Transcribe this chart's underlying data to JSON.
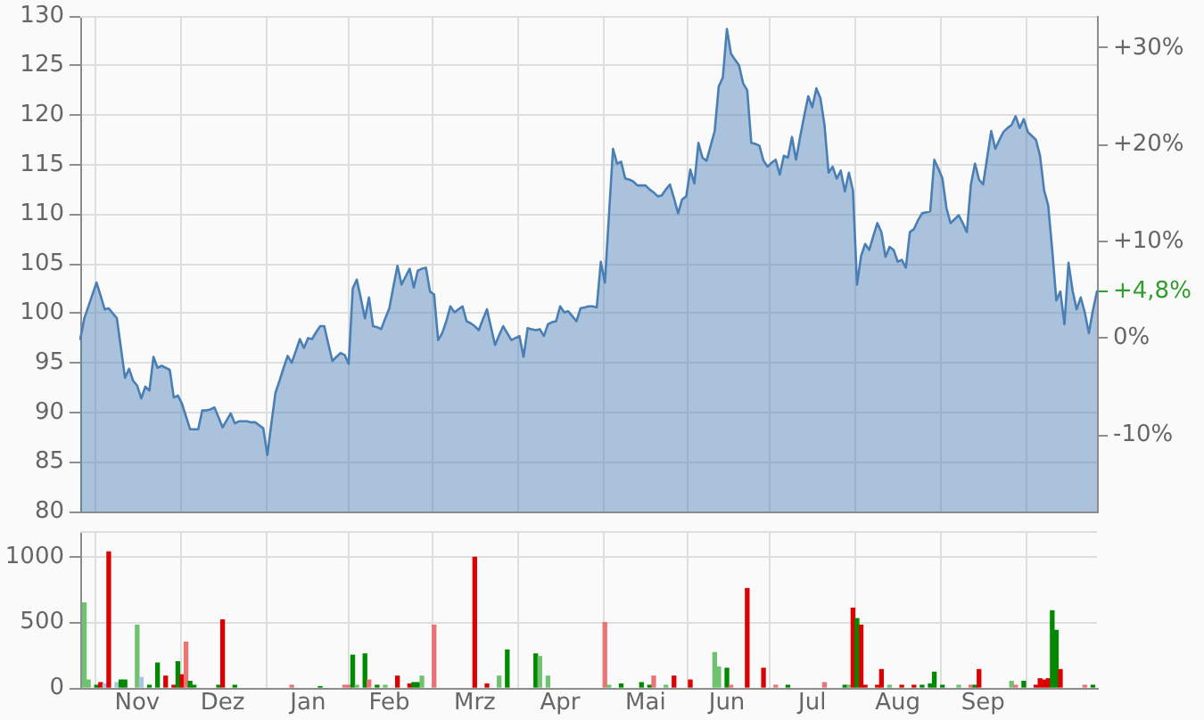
{
  "chart_data": [
    {
      "type": "area",
      "categories": [
        null,
        null,
        null,
        null,
        null,
        null,
        null,
        null,
        null,
        null,
        null,
        null,
        null,
        null,
        null,
        null,
        null,
        null,
        null,
        null,
        null,
        null,
        null,
        null,
        null,
        null,
        null,
        null,
        null,
        null,
        null,
        null,
        null,
        null,
        null,
        null,
        null,
        null,
        null,
        null,
        null,
        null,
        null,
        null,
        null,
        null,
        null,
        null,
        null,
        null,
        null,
        null,
        null,
        null,
        null,
        null,
        null,
        null,
        null,
        null,
        null,
        null,
        null,
        null,
        null,
        null,
        null,
        null,
        null,
        null,
        null,
        null,
        null,
        null,
        null,
        null,
        null,
        null,
        null,
        null,
        null,
        null,
        null,
        null,
        null,
        null,
        null,
        null,
        null,
        null,
        null,
        null,
        null,
        null,
        null,
        null,
        null,
        null,
        null,
        null,
        null,
        null,
        null,
        null,
        null,
        null,
        null,
        null,
        null,
        null,
        null,
        null,
        null,
        null,
        null,
        null,
        null,
        null,
        null,
        null,
        null,
        null,
        null,
        null,
        null,
        null,
        null,
        null,
        null,
        null,
        null,
        null,
        null,
        null,
        null,
        null,
        null,
        null,
        null,
        null,
        null,
        null,
        null,
        null,
        null,
        null,
        null,
        null,
        null,
        null,
        null,
        null,
        null,
        null,
        null,
        null,
        null,
        null,
        null,
        null,
        null,
        null,
        null,
        null,
        null,
        null,
        null,
        null,
        null,
        null,
        null,
        null,
        null,
        null,
        null,
        null,
        null,
        null,
        null,
        null,
        null,
        null,
        null,
        null,
        null,
        null,
        null,
        null,
        null,
        null,
        null,
        null,
        null,
        null,
        null,
        null,
        null,
        null,
        null,
        null,
        null,
        null,
        null,
        null,
        null,
        null,
        null,
        null,
        null,
        null,
        null,
        null,
        null,
        null,
        null,
        null,
        null,
        null,
        null,
        null,
        null,
        null,
        null,
        null,
        null,
        null,
        null,
        null,
        null,
        null,
        null,
        null,
        null,
        null,
        null,
        null,
        null,
        null,
        null,
        null,
        null,
        null,
        null,
        null,
        null,
        null,
        null,
        null,
        null,
        null,
        null
      ],
      "values": [
        97.4,
        99.5,
        100.7,
        101.9,
        103.1,
        101.8,
        100.4,
        100.5,
        100.0,
        99.5,
        96.5,
        93.5,
        94.4,
        93.2,
        92.7,
        91.4,
        92.6,
        92.2,
        95.6,
        94.5,
        94.7,
        94.5,
        94.3,
        91.5,
        91.7,
        90.9,
        89.6,
        88.3,
        88.3,
        88.3,
        90.2,
        90.2,
        90.3,
        90.5,
        89.5,
        88.5,
        89.2,
        89.9,
        88.9,
        89.1,
        89.1,
        89.1,
        89.0,
        89.0,
        88.7,
        88.4,
        85.7,
        88.9,
        92.0,
        93.2,
        94.5,
        95.7,
        95.0,
        96.2,
        97.4,
        96.5,
        97.5,
        97.4,
        98.1,
        98.7,
        98.7,
        96.9,
        95.2,
        95.6,
        96.0,
        95.8,
        94.9,
        102.5,
        103.4,
        101.5,
        99.5,
        101.6,
        98.7,
        98.6,
        98.4,
        99.5,
        100.5,
        102.7,
        104.8,
        102.9,
        103.7,
        104.5,
        102.6,
        104.3,
        104.5,
        104.6,
        102.2,
        101.9,
        97.3,
        98.0,
        99.2,
        100.7,
        100.1,
        100.4,
        100.7,
        99.2,
        99.0,
        98.7,
        98.3,
        99.4,
        100.4,
        98.6,
        96.8,
        97.8,
        98.7,
        98.0,
        97.3,
        97.5,
        97.7,
        95.6,
        98.5,
        98.4,
        98.3,
        98.4,
        97.7,
        98.9,
        99.1,
        99.2,
        100.7,
        100.1,
        100.2,
        99.7,
        99.2,
        100.5,
        100.6,
        100.7,
        100.7,
        100.6,
        105.2,
        103.1,
        109.9,
        116.6,
        115.1,
        115.3,
        113.6,
        113.5,
        113.3,
        112.9,
        112.9,
        112.9,
        112.5,
        112.2,
        111.8,
        111.9,
        112.5,
        113.0,
        111.6,
        110.1,
        111.5,
        111.8,
        114.5,
        113.1,
        117.2,
        115.7,
        115.4,
        116.9,
        118.4,
        122.9,
        123.8,
        128.7,
        126.2,
        125.6,
        125.0,
        123.2,
        122.5,
        117.2,
        117.1,
        116.9,
        115.4,
        114.8,
        115.2,
        115.5,
        114.0,
        115.9,
        115.7,
        117.8,
        115.5,
        117.8,
        119.9,
        121.9,
        120.8,
        122.7,
        121.7,
        119.0,
        114.2,
        114.8,
        113.6,
        114.4,
        112.3,
        114.2,
        112.4,
        102.9,
        105.8,
        107.0,
        106.4,
        107.8,
        109.1,
        108.2,
        105.7,
        106.7,
        106.4,
        105.2,
        105.4,
        104.6,
        108.2,
        108.5,
        109.4,
        110.1,
        110.2,
        110.3,
        115.5,
        114.6,
        113.6,
        110.6,
        109.1,
        109.5,
        109.9,
        109.1,
        108.2,
        113.0,
        115.1,
        113.5,
        113.0,
        115.7,
        118.4,
        116.6,
        117.5,
        118.3,
        118.7,
        119.0,
        119.9,
        118.7,
        119.6,
        118.3,
        117.9,
        117.5,
        115.9,
        112.4,
        110.9,
        106.4,
        101.3,
        102.2,
        98.9,
        105.1,
        102.3,
        100.4,
        101.6,
        100.1,
        98.0,
        100.3,
        102.2
      ],
      "color": "#4a7fb5",
      "ylim": [
        80,
        130
      ],
      "yticks": [
        80,
        85,
        90,
        95,
        100,
        105,
        110,
        115,
        120,
        125,
        130
      ],
      "y2lim": [
        -17.9,
        33.3
      ],
      "y2ticks": [
        {
          "value": 30,
          "label": "+30%"
        },
        {
          "value": 20,
          "label": "+20%"
        },
        {
          "value": 10,
          "label": "+10%"
        },
        {
          "value": 4.8,
          "label": "+4,8%"
        },
        {
          "value": 0,
          "label": "0%"
        },
        {
          "value": -10,
          "label": "-10%"
        }
      ],
      "grid": true,
      "tick_labels": "y"
    },
    {
      "type": "bar",
      "categories": [
        null,
        null,
        null,
        null,
        null,
        null,
        null,
        null,
        null,
        null,
        null,
        null,
        null,
        null,
        "Nov",
        null,
        null,
        null,
        null,
        null,
        null,
        null,
        null,
        null,
        null,
        null,
        null,
        null,
        null,
        null,
        null,
        null,
        null,
        null,
        null,
        "Dez",
        null,
        null,
        null,
        null,
        null,
        null,
        null,
        null,
        null,
        null,
        null,
        null,
        null,
        null,
        null,
        null,
        null,
        null,
        null,
        null,
        "Jan",
        null,
        null,
        null,
        null,
        null,
        null,
        null,
        null,
        null,
        null,
        null,
        null,
        null,
        null,
        null,
        null,
        null,
        null,
        null,
        "Feb",
        null,
        null,
        null,
        null,
        null,
        null,
        null,
        null,
        null,
        null,
        null,
        null,
        null,
        null,
        null,
        null,
        null,
        null,
        null,
        null,
        "Mrz",
        null,
        null,
        null,
        null,
        null,
        null,
        null,
        null,
        null,
        null,
        null,
        null,
        null,
        null,
        null,
        null,
        null,
        null,
        null,
        null,
        "Apr",
        null,
        null,
        null,
        null,
        null,
        null,
        null,
        null,
        null,
        null,
        null,
        null,
        null,
        null,
        null,
        null,
        null,
        null,
        null,
        null,
        "Mai",
        null,
        null,
        null,
        null,
        null,
        null,
        null,
        null,
        null,
        null,
        null,
        null,
        null,
        null,
        null,
        null,
        null,
        null,
        null,
        "Jun",
        null,
        null,
        null,
        null,
        null,
        null,
        null,
        null,
        null,
        null,
        null,
        null,
        null,
        null,
        null,
        null,
        null,
        null,
        null,
        null,
        "Jul",
        null,
        null,
        null,
        null,
        null,
        null,
        null,
        null,
        null,
        null,
        null,
        null,
        null,
        null,
        null,
        null,
        null,
        null,
        null,
        null,
        "Aug",
        null,
        null,
        null,
        null,
        null,
        null,
        null,
        null,
        null,
        null,
        null,
        null,
        null,
        null,
        null,
        null,
        null,
        null,
        null,
        null,
        "Sep",
        null,
        null,
        null,
        null,
        null,
        null,
        null,
        null,
        null,
        null,
        null,
        null,
        null,
        null,
        null,
        null,
        null,
        null,
        null,
        null,
        null,
        null,
        null,
        null,
        null,
        null,
        null,
        null
      ],
      "values": [
        null,
        650,
        60,
        null,
        20,
        40,
        30,
        1040,
        null,
        40,
        60,
        60,
        null,
        null,
        480,
        80,
        null,
        20,
        null,
        190,
        null,
        90,
        null,
        20,
        200,
        100,
        350,
        50,
        20,
        null,
        null,
        null,
        null,
        null,
        20,
        520,
        null,
        null,
        20,
        null,
        null,
        null,
        null,
        null,
        null,
        null,
        null,
        null,
        null,
        null,
        null,
        null,
        20,
        null,
        null,
        null,
        null,
        null,
        null,
        10,
        null,
        null,
        null,
        null,
        null,
        20,
        20,
        250,
        20,
        null,
        260,
        60,
        null,
        20,
        null,
        20,
        null,
        null,
        90,
        null,
        null,
        30,
        40,
        40,
        90,
        null,
        null,
        480,
        null,
        null,
        null,
        null,
        null,
        null,
        null,
        null,
        null,
        1000,
        null,
        null,
        30,
        null,
        null,
        90,
        null,
        290,
        null,
        null,
        null,
        null,
        null,
        null,
        260,
        240,
        null,
        90,
        null,
        null,
        null,
        null,
        null,
        null,
        null,
        null,
        null,
        null,
        null,
        null,
        null,
        500,
        20,
        null,
        null,
        30,
        null,
        null,
        null,
        null,
        40,
        null,
        20,
        90,
        null,
        null,
        20,
        null,
        90,
        null,
        null,
        null,
        60,
        null,
        null,
        null,
        null,
        null,
        270,
        160,
        null,
        150,
        20,
        null,
        null,
        null,
        760,
        null,
        null,
        null,
        150,
        null,
        null,
        20,
        null,
        null,
        20,
        null,
        null,
        null,
        null,
        null,
        null,
        null,
        null,
        40,
        null,
        null,
        null,
        null,
        20,
        20,
        610,
        530,
        480,
        20,
        null,
        null,
        20,
        140,
        null,
        20,
        null,
        null,
        20,
        null,
        null,
        20,
        null,
        20,
        null,
        30,
        120,
        null,
        20,
        null,
        null,
        null,
        20,
        null,
        null,
        20,
        20,
        140,
        null,
        null,
        null,
        null,
        null,
        null,
        null,
        50,
        20,
        null,
        50,
        null,
        null,
        20,
        70,
        60,
        70,
        590,
        440,
        140,
        null,
        null,
        null,
        null,
        null,
        20,
        null,
        20,
        null
      ],
      "colors": [
        null,
        "#70c270",
        "#70c270",
        null,
        "#008a00",
        "#dd0000",
        "#a8c4e2",
        "#dd0000",
        null,
        "#a8c4e2",
        "#008a00",
        "#008a00",
        null,
        null,
        "#70c270",
        "#a8c4e2",
        null,
        "#008a00",
        null,
        "#008a00",
        null,
        "#dd0000",
        null,
        "#dd0000",
        "#008a00",
        "#dd0000",
        "#e87474",
        "#008a00",
        "#008a00",
        null,
        null,
        null,
        null,
        null,
        "#008a00",
        "#dd0000",
        null,
        null,
        "#008a00",
        null,
        null,
        null,
        null,
        null,
        null,
        null,
        null,
        null,
        null,
        null,
        null,
        null,
        "#e87474",
        null,
        null,
        null,
        null,
        null,
        null,
        "#008a00",
        null,
        null,
        null,
        null,
        null,
        "#e87474",
        "#e87474",
        "#008a00",
        "#70c270",
        null,
        "#008a00",
        "#e87474",
        null,
        "#008a00",
        null,
        "#70c270",
        null,
        null,
        "#dd0000",
        null,
        null,
        "#dd0000",
        "#008a00",
        "#008a00",
        "#70c270",
        null,
        null,
        "#e87474",
        null,
        null,
        null,
        null,
        null,
        null,
        null,
        null,
        null,
        "#dd0000",
        null,
        null,
        "#dd0000",
        null,
        null,
        "#70c270",
        null,
        "#008a00",
        null,
        null,
        null,
        null,
        null,
        null,
        "#008a00",
        "#70c270",
        null,
        "#70c270",
        null,
        null,
        null,
        null,
        null,
        null,
        null,
        null,
        null,
        null,
        null,
        null,
        null,
        "#e87474",
        "#70c270",
        null,
        null,
        "#008a00",
        null,
        null,
        null,
        null,
        "#008a00",
        null,
        "#008a00",
        "#e87474",
        null,
        null,
        "#70c270",
        null,
        "#dd0000",
        null,
        null,
        null,
        "#dd0000",
        null,
        null,
        null,
        null,
        null,
        "#70c270",
        "#70c270",
        null,
        "#008a00",
        "#e87474",
        null,
        null,
        null,
        "#dd0000",
        null,
        null,
        null,
        "#dd0000",
        null,
        null,
        "#e87474",
        null,
        null,
        "#008a00",
        null,
        null,
        null,
        null,
        null,
        null,
        null,
        null,
        "#e87474",
        null,
        null,
        null,
        null,
        "#008a00",
        "#70c270",
        "#dd0000",
        "#008a00",
        "#dd0000",
        "#dd0000",
        null,
        null,
        "#dd0000",
        "#dd0000",
        null,
        "#70c270",
        null,
        null,
        "#dd0000",
        null,
        null,
        "#dd0000",
        null,
        "#008a00",
        null,
        "#008a00",
        "#008a00",
        null,
        "#008a00",
        null,
        null,
        null,
        "#70c270",
        null,
        null,
        "#e87474",
        "#008a00",
        "#dd0000",
        null,
        null,
        null,
        null,
        null,
        null,
        null,
        "#70c270",
        "#e87474",
        null,
        "#008a00",
        null,
        null,
        "#dd0000",
        "#dd0000",
        "#dd0000",
        "#dd0000",
        "#008a00",
        "#008a00",
        "#dd0000",
        null,
        null,
        null,
        null,
        null,
        "#e87474",
        null,
        "#008a00",
        null
      ],
      "ylim": [
        0,
        1200
      ],
      "yticks": [
        0,
        500,
        1000
      ],
      "grid": true
    }
  ]
}
